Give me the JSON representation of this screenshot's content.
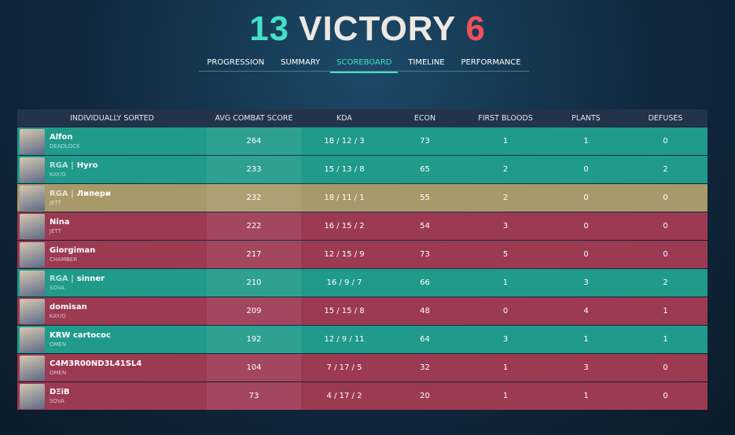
{
  "header": {
    "ally_score": 13,
    "result": "VICTORY",
    "enemy_score": 6
  },
  "tabs": {
    "items": [
      "PROGRESSION",
      "SUMMARY",
      "SCOREBOARD",
      "TIMELINE",
      "PERFORMANCE"
    ],
    "active": 2
  },
  "table": {
    "columns": [
      "INDIVIDUALLY SORTED",
      "AVG COMBAT SCORE",
      "KDA",
      "ECON",
      "FIRST BLOODS",
      "PLANTS",
      "DEFUSES"
    ],
    "rows": [
      {
        "name": "Alfon",
        "agent": "DEADLOCK",
        "acs": 264,
        "kda": "18 / 12 / 3",
        "econ": 73,
        "first_bloods": 1,
        "plants": 1,
        "defuses": 0,
        "color": "#1f9a8b"
      },
      {
        "tag": "RGA |",
        "name": "Hyro",
        "agent": "KAY/O",
        "acs": 233,
        "kda": "15 / 13 / 8",
        "econ": 65,
        "first_bloods": 2,
        "plants": 0,
        "defuses": 2,
        "color": "#1f9a8b"
      },
      {
        "tag": "RGA |",
        "name": "Липери",
        "agent": "JETT",
        "acs": 232,
        "kda": "18 / 11 / 1",
        "econ": 55,
        "first_bloods": 2,
        "plants": 0,
        "defuses": 0,
        "color": "#a9996a"
      },
      {
        "name": "Nina",
        "agent": "JETT",
        "acs": 222,
        "kda": "16 / 15 / 2",
        "econ": 54,
        "first_bloods": 3,
        "plants": 0,
        "defuses": 0,
        "color": "#9c3a52"
      },
      {
        "name": "Giorgiman",
        "agent": "CHAMBER",
        "acs": 217,
        "kda": "12 / 15 / 9",
        "econ": 73,
        "first_bloods": 5,
        "plants": 0,
        "defuses": 0,
        "color": "#9c3a52"
      },
      {
        "tag": "RGA |",
        "name": "sinner",
        "agent": "SOVA",
        "acs": 210,
        "kda": "16 / 9 / 7",
        "econ": 66,
        "first_bloods": 1,
        "plants": 3,
        "defuses": 2,
        "color": "#1f9a8b"
      },
      {
        "name": "domisan",
        "agent": "KAY/O",
        "acs": 209,
        "kda": "15 / 15 / 8",
        "econ": 48,
        "first_bloods": 0,
        "plants": 4,
        "defuses": 1,
        "color": "#9c3a52"
      },
      {
        "name": "KRW cartococ",
        "agent": "OMEN",
        "acs": 192,
        "kda": "12 / 9 / 11",
        "econ": 64,
        "first_bloods": 3,
        "plants": 1,
        "defuses": 1,
        "color": "#1f9a8b"
      },
      {
        "name": "C4M3R00ND3L41SL4",
        "agent": "OMEN",
        "acs": 104,
        "kda": "7 / 17 / 5",
        "econ": 32,
        "first_bloods": 1,
        "plants": 3,
        "defuses": 0,
        "color": "#9c3a52"
      },
      {
        "name": "DΞiB",
        "agent": "SOVA",
        "acs": 73,
        "kda": "4 / 17 / 2",
        "econ": 20,
        "first_bloods": 1,
        "plants": 1,
        "defuses": 0,
        "color": "#9c3a52"
      }
    ]
  }
}
